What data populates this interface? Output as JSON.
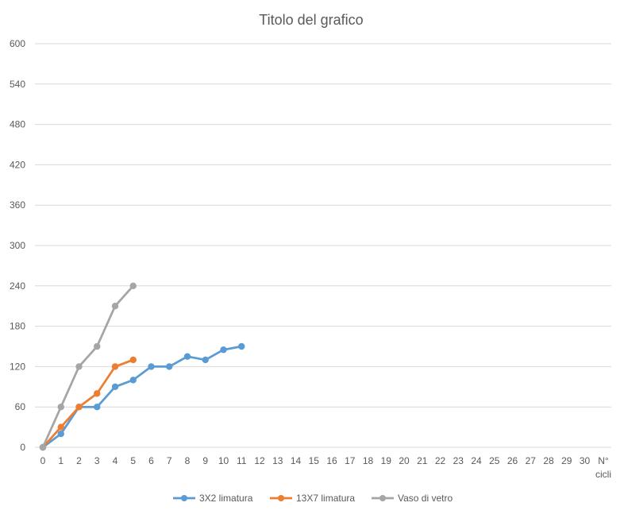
{
  "chart_data": {
    "type": "line",
    "title": "Titolo del grafico",
    "xlabel_line1": "N°",
    "xlabel_line2": "cicli",
    "ylabel": "",
    "x": [
      0,
      1,
      2,
      3,
      4,
      5,
      6,
      7,
      8,
      9,
      10,
      11,
      12,
      13,
      14,
      15,
      16,
      17,
      18,
      19,
      20,
      21,
      22,
      23,
      24,
      25,
      26,
      27,
      28,
      29,
      30
    ],
    "ylim": [
      0,
      600
    ],
    "yticks": [
      0,
      60,
      120,
      180,
      240,
      300,
      360,
      420,
      480,
      540,
      600
    ],
    "grid": true,
    "legend_position": "bottom",
    "series": [
      {
        "name": "3X2 limatura",
        "color": "#5b9bd5",
        "x": [
          0,
          1,
          2,
          3,
          4,
          5,
          6,
          7,
          8,
          9,
          10,
          11
        ],
        "values": [
          0,
          20,
          60,
          60,
          90,
          100,
          120,
          120,
          135,
          130,
          145,
          150
        ]
      },
      {
        "name": "13X7 limatura",
        "color": "#ed7d31",
        "x": [
          0,
          1,
          2,
          3,
          4,
          5
        ],
        "values": [
          0,
          30,
          60,
          80,
          120,
          130
        ]
      },
      {
        "name": "Vaso di vetro",
        "color": "#a5a5a5",
        "x": [
          0,
          1,
          2,
          3,
          4,
          5
        ],
        "values": [
          0,
          60,
          120,
          150,
          210,
          240
        ]
      }
    ]
  }
}
